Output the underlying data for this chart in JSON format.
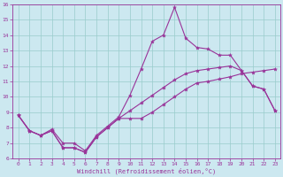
{
  "xlabel": "Windchill (Refroidissement éolien,°C)",
  "xlim": [
    -0.5,
    23.5
  ],
  "ylim": [
    6,
    16
  ],
  "yticks": [
    6,
    7,
    8,
    9,
    10,
    11,
    12,
    13,
    14,
    15,
    16
  ],
  "xticks": [
    0,
    1,
    2,
    3,
    4,
    5,
    6,
    7,
    8,
    9,
    10,
    11,
    12,
    13,
    14,
    15,
    16,
    17,
    18,
    19,
    20,
    21,
    22,
    23
  ],
  "bg_color": "#cce8f0",
  "line_color": "#993399",
  "grid_color": "#99cccc",
  "line1_y": [
    8.8,
    7.8,
    7.5,
    7.8,
    6.7,
    6.7,
    6.4,
    7.4,
    8.0,
    8.6,
    8.6,
    8.6,
    9.0,
    9.5,
    10.0,
    10.5,
    10.9,
    11.0,
    11.15,
    11.3,
    11.5,
    11.6,
    11.7,
    11.8
  ],
  "line2_y": [
    8.8,
    7.8,
    7.5,
    7.9,
    7.0,
    7.0,
    6.5,
    7.5,
    8.1,
    8.7,
    10.1,
    11.8,
    13.6,
    14.0,
    15.8,
    13.8,
    13.2,
    13.1,
    12.7,
    12.7,
    11.7,
    10.7,
    10.5,
    9.1
  ],
  "line3_y": [
    8.8,
    7.8,
    7.5,
    7.8,
    6.7,
    6.7,
    6.4,
    7.4,
    8.0,
    8.6,
    9.1,
    9.6,
    10.1,
    10.6,
    11.1,
    11.5,
    11.7,
    11.8,
    11.9,
    12.0,
    11.7,
    10.7,
    10.5,
    9.1
  ],
  "marker": "*",
  "markersize": 3.0,
  "linewidth": 0.8,
  "tick_fontsize": 4.5,
  "xlabel_fontsize": 5.0
}
